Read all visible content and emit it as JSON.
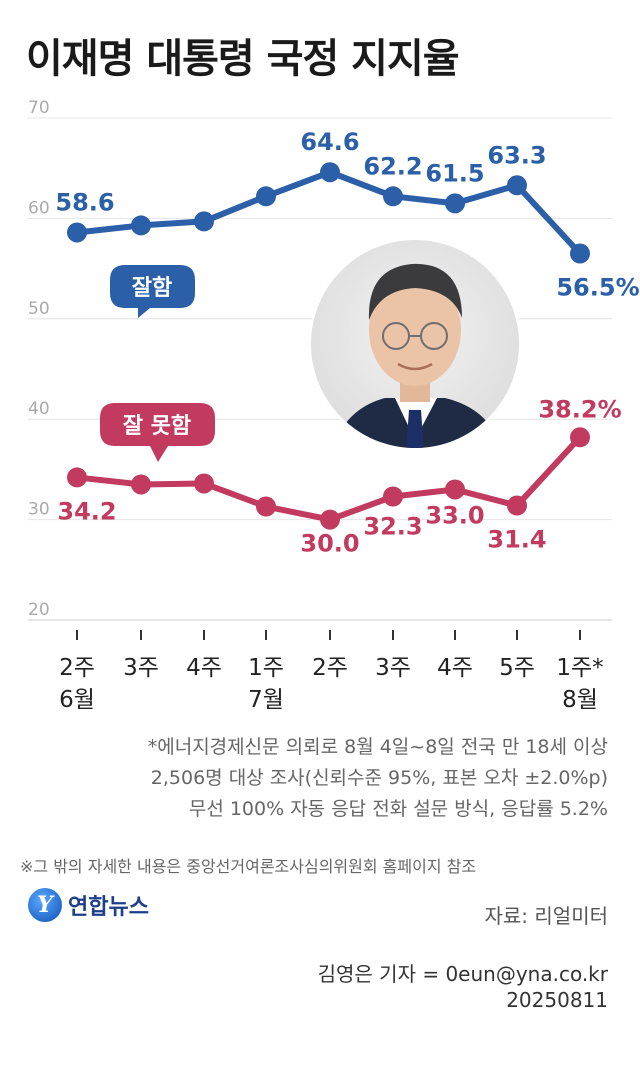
{
  "title": "이재명 대통령 국정 지지율",
  "chart_data": {
    "type": "line",
    "ylim": [
      20,
      70
    ],
    "yticks": [
      20,
      30,
      40,
      50,
      60,
      70
    ],
    "categories": [
      {
        "week": "2주",
        "month": "6월"
      },
      {
        "week": "3주",
        "month": ""
      },
      {
        "week": "4주",
        "month": ""
      },
      {
        "week": "1주",
        "month": "7월"
      },
      {
        "week": "2주",
        "month": ""
      },
      {
        "week": "3주",
        "month": ""
      },
      {
        "week": "4주",
        "month": ""
      },
      {
        "week": "5주",
        "month": ""
      },
      {
        "week": "1주*",
        "month": "8월"
      }
    ],
    "series": [
      {
        "name": "잘함",
        "color": "#2b5fa8",
        "values": [
          58.6,
          59.3,
          59.7,
          62.2,
          64.6,
          62.2,
          61.5,
          63.3,
          56.5
        ],
        "labels": [
          "58.6",
          "",
          "",
          "",
          "64.6",
          "62.2",
          "61.5",
          "63.3",
          "56.5%"
        ]
      },
      {
        "name": "잘 못함",
        "color": "#c23a5f",
        "values": [
          34.2,
          33.5,
          33.6,
          31.3,
          30.0,
          32.3,
          33.0,
          31.4,
          38.2
        ],
        "labels": [
          "34.2",
          "",
          "",
          "",
          "30.0",
          "32.3",
          "33.0",
          "31.4",
          "38.2%"
        ]
      }
    ],
    "grid": true
  },
  "note": [
    "*에너지경제신문 의뢰로 8월 4일~8일 전국 만 18세 이상",
    "2,506명 대상 조사(신뢰수준 95%, 표본 오차 ±2.0%p)",
    "무선 100% 자동 응답 전화 설문 방식, 응답률 5.2%"
  ],
  "footnote": "※그 밖의 자세한 내용은 중앙선거여론조사심의위원회 홈페이지 참조",
  "logo": {
    "mark": "Y",
    "text": "연합뉴스"
  },
  "source": "자료: 리얼미터",
  "reporter": "김영은 기자 = 0eun@yna.co.kr",
  "date": "20250811"
}
